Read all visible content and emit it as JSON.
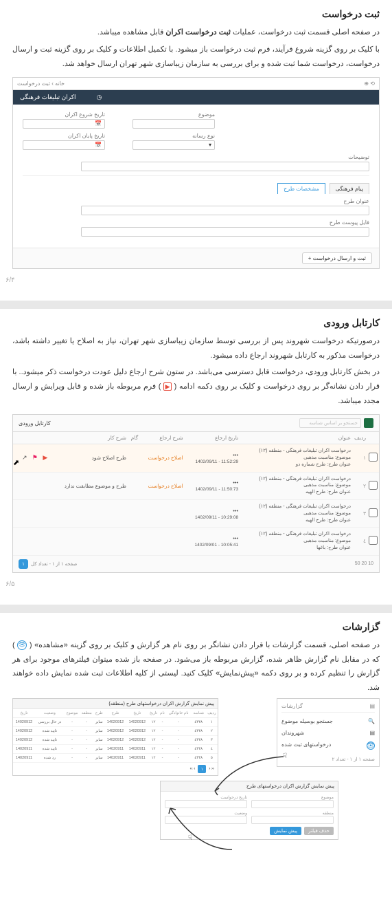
{
  "sec1": {
    "heading": "ثبت درخواست",
    "p1_a": "در صفحه اصلی قسمت ثبت درخواست، عملیات ",
    "p1_b": "ثبت درخواست اکران",
    "p1_c": " قابل مشاهده میباشد.",
    "p2": "با کلیک بر روی گزینه شروع فرآیند، فرم ثبت درخواست باز میشود. با تکمیل اطلاعات و کلیک بر روی گزینه ثبت و ارسال درخواست، درخواست شما ثبت شده و برای بررسی به سازمان زیباسازی شهر تهران ارسال خواهد شد.",
    "pagenum": "۶/۴",
    "form": {
      "breadcrumbs": "خانه › ثبت درخواست",
      "tab_title": "اکران تبلیغات فرهنگی",
      "f_start_date": "تاریخ شروع اکران",
      "f_subject": "موضوع",
      "f_end_date": "تاریخ پایان اکران",
      "f_media": "نوع رسانه",
      "f_desc": "توضیحات",
      "tab1": "مشخصات طرح",
      "tab2": "پیام فرهنگی",
      "f_title": "عنوان طرح",
      "f_file": "فایل پیوست طرح",
      "btn": "ثبت و ارسال درخواست +"
    }
  },
  "sec2": {
    "heading": "کارتابل ورودی",
    "p1": "درصورتیکه درخواست شهروند پس از بررسی توسط سازمان زیباسازی شهر تهران، نیاز به اصلاح یا تغییر داشته باشد، درخواست مذکور به کارتابل شهروند ارجاع داده میشود.",
    "p2_a": "در بخش کارتابل ورودی، درخواست قابل دسترسی می‌باشد. در ستون شرح ارجاع دلیل عودت درخواست ذکر میشود.. با قرار دادن نشانه‌گر بر روی درخواست و کلیک بر روی دکمه ادامه ( ",
    "p2_b": " ) فرم مربوطه باز شده و قابل ویرایش و ارسال مجدد میباشد.",
    "pagenum": "۶/۵",
    "table": {
      "title": "کارتابل ورودی",
      "search": "جستجو بر اساس شناسه",
      "cols": [
        "",
        "ردیف",
        "عنوان",
        "تاریخ ارجاع",
        "شرح ارجاع",
        "گام",
        "شرح کار",
        ""
      ],
      "rows": [
        {
          "idx": "١",
          "title": "درخواست اکران تبلیغات فرهنگی - منطقه (١٢)\nموضوع: مناسبت مذهبی\nعنوان طرح: طرح شماره دو",
          "date": "11:52:29 - 1402/09/11",
          "ref": "اصلاح درخواست",
          "step": "",
          "work": "طرح اصلاح شود",
          "sel": true
        },
        {
          "idx": "٢",
          "title": "درخواست اکران تبلیغات فرهنگی - منطقه (١٢)\nموضوع: مناسبت مذهبی\nعنوان طرح: طرح الهیه",
          "date": "11:50:73 - 1402/09/11",
          "ref": "اصلاح درخواست",
          "step": "",
          "work": "طرح و موضوع مطابقت ندارد",
          "sel": false
        },
        {
          "idx": "٣",
          "title": "درخواست اکران تبلیغات فرهنگی - منطقه (١٢)\nموضوع: مناسبت مذهبی\nعنوان طرح: طرح الهیه",
          "date": "10:29:08 - 1402/09/11",
          "ref": "",
          "step": "",
          "work": "",
          "sel": false
        },
        {
          "idx": "٤",
          "title": "درخواست اکران تبلیغات فرهنگی - منطقه (١٢)\nموضوع: مناسبت مذهبی\nعنوان طرح: باغها",
          "date": "10:05:41 - 1402/09/01",
          "ref": "",
          "step": "",
          "work": "",
          "sel": false
        }
      ],
      "pager_info": "صفحه ١ از ١ - تعداد کل",
      "pager_sizes": "10  20  50"
    }
  },
  "sec3": {
    "heading": "گزارشات",
    "p1_a": "در صفحه اصلی، قسمت گزارشات با قرار دادن نشانگر بر روی نام هر گزارش و کلیک بر روی گزینه «مشاهده» ( ",
    "p1_b": " ) که در مقابل نام گزارش ظاهر شده، گزارش مربوطه باز می‌شود. در صفحه باز شده میتوان فیلترهای موجود برای هر گزارش را تنظیم کرده و بر روی دکمه «پیش‌نمایش» کلیک کنید. لیستی از کلیه اطلاعات ثبت شده نمایش داده خواهند شد.",
    "panel_right": {
      "title": "گزارشات",
      "search": "جستجو بوسیله موضوع",
      "item1": "شهروندان",
      "item2": "درخواستهای ثبت شده",
      "pager": "صفحه ١ از ١ - تعداد ٢"
    },
    "panel_mid": {
      "title": "پیش نمایش گزارش اکران درخواستهای طرح",
      "f1": "تاریخ درخواست",
      "f2": "موضوع",
      "f3": "وضعیت",
      "f4": "منطقه",
      "btn1": "پیش نمایش",
      "btn2": "حذف فیلتر"
    },
    "panel_left": {
      "title": "پیش نمایش گزارش اکران درخواستهای طرح (منطقه)",
      "cols": [
        "ردیف",
        "شناسه",
        "نام خانوادگی",
        "نام",
        "تاریخ",
        "تاریخ",
        "طرح",
        "طرح",
        "منطقه",
        "موضوع",
        "وضعیت",
        "تاریخ"
      ],
      "rows": [
        [
          "١",
          "٤٣٣٨",
          "-",
          "-",
          "١٢",
          "14020912",
          "14020912",
          "سایر",
          "-",
          "-",
          "در حال بررسی",
          "14020912"
        ],
        [
          "٢",
          "٤٣٣٨",
          "-",
          "-",
          "١٢",
          "14020912",
          "14020912",
          "سایر",
          "-",
          "-",
          "تایید شده",
          "14020912"
        ],
        [
          "٣",
          "٤٣٣٨",
          "-",
          "-",
          "١٢",
          "14020912",
          "14020912",
          "سایر",
          "-",
          "-",
          "تایید شده",
          "14020912"
        ],
        [
          "٤",
          "٤٣٣٨",
          "-",
          "-",
          "١٢",
          "14020911",
          "14020911",
          "سایر",
          "-",
          "-",
          "تایید شده",
          "14020911"
        ],
        [
          "٥",
          "٤٣٣٨",
          "-",
          "-",
          "١٢",
          "14020911",
          "14020911",
          "سایر",
          "-",
          "-",
          "رد شده",
          "14020911"
        ]
      ]
    }
  }
}
